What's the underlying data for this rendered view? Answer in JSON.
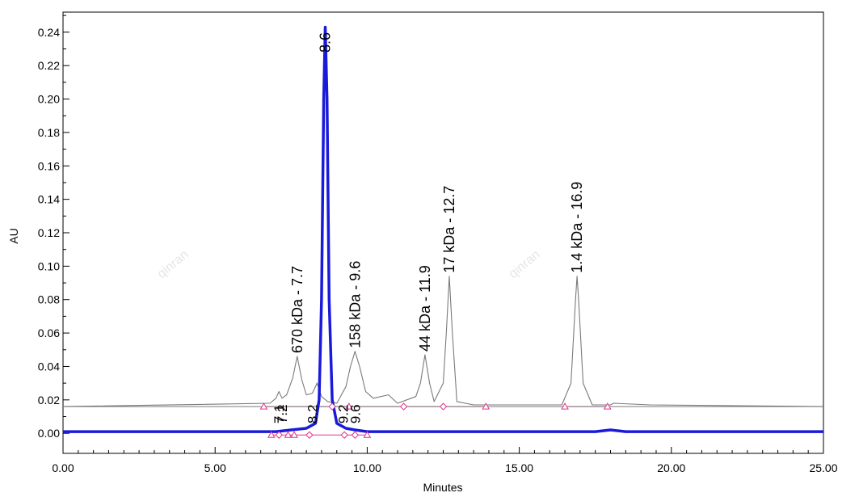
{
  "chart_data": {
    "type": "line",
    "title": "",
    "xlabel": "Minutes",
    "ylabel": "AU",
    "xlim": [
      0,
      25
    ],
    "ylim": [
      -0.012,
      0.252
    ],
    "x_ticks": [
      "0.00",
      "5.00",
      "10.00",
      "15.00",
      "20.00",
      "25.00"
    ],
    "y_ticks": [
      "0.00",
      "0.02",
      "0.04",
      "0.06",
      "0.08",
      "0.10",
      "0.12",
      "0.14",
      "0.16",
      "0.18",
      "0.20",
      "0.22",
      "0.24"
    ],
    "colors": {
      "standard": "#7a7a7a",
      "sample": "#1a1adb",
      "baseline_marker": "#e0358a"
    },
    "series": [
      {
        "name": "",
        "baseline": 0.016,
        "x": [
          0,
          6.8,
          7.0,
          7.1,
          7.2,
          7.35,
          7.55,
          7.7,
          7.85,
          8.0,
          8.2,
          8.35,
          8.5,
          8.7,
          9.0,
          9.3,
          9.45,
          9.6,
          9.75,
          9.95,
          10.2,
          10.7,
          11.0,
          11.6,
          11.75,
          11.9,
          12.05,
          12.2,
          12.5,
          12.6,
          12.7,
          12.8,
          12.95,
          13.5,
          16.4,
          16.7,
          16.85,
          16.9,
          16.95,
          17.1,
          17.4,
          18.0,
          18.1,
          19.3,
          25
        ],
        "y": [
          0.016,
          0.018,
          0.021,
          0.025,
          0.021,
          0.023,
          0.033,
          0.046,
          0.032,
          0.023,
          0.024,
          0.03,
          0.022,
          0.019,
          0.018,
          0.028,
          0.04,
          0.049,
          0.04,
          0.025,
          0.021,
          0.023,
          0.018,
          0.022,
          0.03,
          0.047,
          0.03,
          0.019,
          0.03,
          0.06,
          0.094,
          0.06,
          0.019,
          0.017,
          0.017,
          0.03,
          0.08,
          0.094,
          0.08,
          0.03,
          0.017,
          0.017,
          0.018,
          0.017,
          0.016
        ]
      },
      {
        "name": "",
        "x": [
          0,
          6.0,
          7.0,
          7.5,
          8.0,
          8.3,
          8.42,
          8.5,
          8.57,
          8.62,
          8.68,
          8.75,
          8.85,
          9.0,
          9.3,
          9.6,
          10.0,
          12.0,
          17.5,
          18.0,
          18.5,
          25
        ],
        "y": [
          0.001,
          0.001,
          0.001,
          0.002,
          0.003,
          0.006,
          0.02,
          0.08,
          0.2,
          0.243,
          0.2,
          0.08,
          0.02,
          0.006,
          0.003,
          0.002,
          0.001,
          0.001,
          0.001,
          0.002,
          0.001,
          0.001
        ]
      }
    ],
    "peak_labels": [
      {
        "text": "670 kDa - 7.7",
        "x": 7.7,
        "y": 0.046
      },
      {
        "text": "158 kDa - 9.6",
        "x": 9.6,
        "y": 0.049
      },
      {
        "text": "44 kDa - 11.9",
        "x": 11.9,
        "y": 0.047
      },
      {
        "text": "17 kDa - 12.7",
        "x": 12.7,
        "y": 0.094
      },
      {
        "text": "1.4 kDa - 16.9",
        "x": 16.9,
        "y": 0.094
      },
      {
        "text": "8.6",
        "x": 8.62,
        "y": 0.243
      },
      {
        "text": "7.2",
        "x": 7.2,
        "y": 0.001
      },
      {
        "text": "7.1",
        "x": 7.1,
        "y": 0.001
      },
      {
        "text": "8.2",
        "x": 8.2,
        "y": 0.001
      },
      {
        "text": "9.2",
        "x": 9.2,
        "y": 0.001
      },
      {
        "text": "9.6",
        "x": 9.6,
        "y": 0.001
      }
    ],
    "markers_standard": [
      {
        "x": 6.6,
        "y": 0.016,
        "shape": "triangle"
      },
      {
        "x": 8.85,
        "y": 0.016,
        "shape": "diamond"
      },
      {
        "x": 9.4,
        "y": 0.016,
        "shape": "triangle"
      },
      {
        "x": 11.2,
        "y": 0.016,
        "shape": "diamond"
      },
      {
        "x": 12.5,
        "y": 0.016,
        "shape": "diamond"
      },
      {
        "x": 13.9,
        "y": 0.016,
        "shape": "triangle"
      },
      {
        "x": 16.5,
        "y": 0.016,
        "shape": "triangle"
      },
      {
        "x": 17.9,
        "y": 0.016,
        "shape": "triangle"
      }
    ],
    "markers_sample": [
      {
        "x": 6.85,
        "y": -0.001,
        "shape": "triangle"
      },
      {
        "x": 7.1,
        "y": -0.001,
        "shape": "diamond"
      },
      {
        "x": 7.4,
        "y": -0.001,
        "shape": "triangle"
      },
      {
        "x": 7.6,
        "y": -0.001,
        "shape": "triangle"
      },
      {
        "x": 8.1,
        "y": -0.001,
        "shape": "diamond"
      },
      {
        "x": 9.25,
        "y": -0.001,
        "shape": "diamond"
      },
      {
        "x": 9.6,
        "y": -0.001,
        "shape": "diamond"
      },
      {
        "x": 10.0,
        "y": -0.001,
        "shape": "triangle"
      }
    ]
  },
  "watermarks": [
    "qinran",
    "qinran"
  ]
}
